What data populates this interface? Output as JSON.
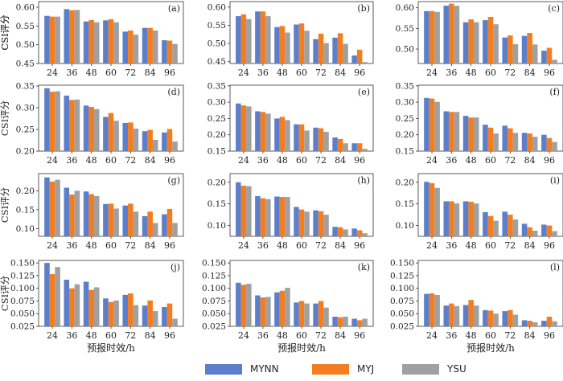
{
  "chart_data": [
    {
      "type": "bar",
      "panel_label": "(a)",
      "categories": [
        "24",
        "36",
        "48",
        "60",
        "72",
        "84",
        "96"
      ],
      "ylim": [
        0.45,
        0.615
      ],
      "yticks": [
        0.45,
        0.5,
        0.55,
        0.6
      ],
      "ytick_labels": [
        "0.45",
        "0.50",
        "0.55",
        "0.60"
      ],
      "ylabel": "CSI评分",
      "xlabel": "",
      "series": [
        {
          "name": "MYNN",
          "values": [
            0.577,
            0.595,
            0.562,
            0.565,
            0.535,
            0.545,
            0.512
          ]
        },
        {
          "name": "MYJ",
          "values": [
            0.575,
            0.592,
            0.566,
            0.568,
            0.538,
            0.545,
            0.511
          ]
        },
        {
          "name": "YSU",
          "values": [
            0.575,
            0.593,
            0.56,
            0.56,
            0.527,
            0.538,
            0.502
          ]
        }
      ]
    },
    {
      "type": "bar",
      "panel_label": "(b)",
      "categories": [
        "24",
        "36",
        "48",
        "60",
        "72",
        "84",
        "96"
      ],
      "ylim": [
        0.445,
        0.615
      ],
      "yticks": [
        0.45,
        0.5,
        0.55,
        0.6
      ],
      "ytick_labels": [
        "0.45",
        "0.50",
        "0.55",
        "0.60"
      ],
      "ylabel": "CSI评分",
      "xlabel": "",
      "series": [
        {
          "name": "MYNN",
          "values": [
            0.575,
            0.588,
            0.545,
            0.552,
            0.512,
            0.516,
            0.467
          ]
        },
        {
          "name": "MYJ",
          "values": [
            0.58,
            0.588,
            0.548,
            0.555,
            0.527,
            0.528,
            0.483
          ]
        },
        {
          "name": "YSU",
          "values": [
            0.567,
            0.575,
            0.53,
            0.535,
            0.501,
            0.499,
            0.449
          ]
        }
      ]
    },
    {
      "type": "bar",
      "panel_label": "(c)",
      "categories": [
        "24",
        "36",
        "48",
        "60",
        "72",
        "84",
        "96"
      ],
      "ylim": [
        0.465,
        0.615
      ],
      "yticks": [
        0.5,
        0.55,
        0.6
      ],
      "ytick_labels": [
        "0.50",
        "0.55",
        "0.60"
      ],
      "ylabel": "",
      "xlabel": "",
      "series": [
        {
          "name": "MYNN",
          "values": [
            0.592,
            0.605,
            0.565,
            0.57,
            0.528,
            0.532,
            0.496
          ]
        },
        {
          "name": "MYJ",
          "values": [
            0.592,
            0.61,
            0.572,
            0.578,
            0.533,
            0.539,
            0.503
          ]
        },
        {
          "name": "YSU",
          "values": [
            0.59,
            0.605,
            0.565,
            0.56,
            0.512,
            0.511,
            0.474
          ]
        }
      ]
    },
    {
      "type": "bar",
      "panel_label": "(d)",
      "categories": [
        "24",
        "36",
        "48",
        "60",
        "72",
        "84",
        "96"
      ],
      "ylim": [
        0.2,
        0.352
      ],
      "yticks": [
        0.2,
        0.25,
        0.3,
        0.35
      ],
      "ytick_labels": [
        "0.20",
        "0.25",
        "0.30",
        "0.35"
      ],
      "ylabel": "CSI评分",
      "xlabel": "",
      "series": [
        {
          "name": "MYNN",
          "values": [
            0.345,
            0.328,
            0.305,
            0.279,
            0.265,
            0.246,
            0.243
          ]
        },
        {
          "name": "MYJ",
          "values": [
            0.337,
            0.318,
            0.302,
            0.288,
            0.266,
            0.249,
            0.251
          ]
        },
        {
          "name": "YSU",
          "values": [
            0.338,
            0.319,
            0.297,
            0.27,
            0.252,
            0.226,
            0.222
          ]
        }
      ]
    },
    {
      "type": "bar",
      "panel_label": "(e)",
      "categories": [
        "24",
        "36",
        "48",
        "60",
        "72",
        "84",
        "96"
      ],
      "ylim": [
        0.15,
        0.352
      ],
      "yticks": [
        0.15,
        0.2,
        0.25,
        0.3,
        0.35
      ],
      "ytick_labels": [
        "0.15",
        "0.20",
        "0.25",
        "0.30",
        "0.35"
      ],
      "ylabel": "",
      "xlabel": "",
      "series": [
        {
          "name": "MYNN",
          "values": [
            0.296,
            0.272,
            0.25,
            0.232,
            0.222,
            0.192,
            0.174
          ]
        },
        {
          "name": "MYJ",
          "values": [
            0.29,
            0.27,
            0.255,
            0.232,
            0.22,
            0.187,
            0.174
          ]
        },
        {
          "name": "YSU",
          "values": [
            0.287,
            0.265,
            0.245,
            0.213,
            0.209,
            0.174,
            0.157
          ]
        }
      ]
    },
    {
      "type": "bar",
      "panel_label": "(f)",
      "categories": [
        "24",
        "36",
        "48",
        "60",
        "72",
        "84",
        "96"
      ],
      "ylim": [
        0.15,
        0.352
      ],
      "yticks": [
        0.15,
        0.2,
        0.25,
        0.3,
        0.35
      ],
      "ytick_labels": [
        "0.15",
        "0.20",
        "0.25",
        "0.30",
        "0.35"
      ],
      "ylabel": "",
      "xlabel": "",
      "series": [
        {
          "name": "MYNN",
          "values": [
            0.313,
            0.272,
            0.258,
            0.231,
            0.228,
            0.206,
            0.2
          ]
        },
        {
          "name": "MYJ",
          "values": [
            0.311,
            0.27,
            0.253,
            0.222,
            0.22,
            0.204,
            0.19
          ]
        },
        {
          "name": "YSU",
          "values": [
            0.301,
            0.27,
            0.253,
            0.204,
            0.206,
            0.194,
            0.178
          ]
        }
      ]
    },
    {
      "type": "bar",
      "panel_label": "(g)",
      "categories": [
        "24",
        "36",
        "48",
        "60",
        "72",
        "84",
        "96"
      ],
      "ylim": [
        0.08,
        0.245
      ],
      "yticks": [
        0.1,
        0.15,
        0.2
      ],
      "ytick_labels": [
        "0.10",
        "0.15",
        "0.20"
      ],
      "ylabel": "CSI评分",
      "xlabel": "",
      "series": [
        {
          "name": "MYNN",
          "values": [
            0.235,
            0.208,
            0.198,
            0.165,
            0.161,
            0.133,
            0.138
          ]
        },
        {
          "name": "MYJ",
          "values": [
            0.224,
            0.19,
            0.191,
            0.166,
            0.166,
            0.145,
            0.152
          ]
        },
        {
          "name": "YSU",
          "values": [
            0.229,
            0.2,
            0.186,
            0.153,
            0.145,
            0.115,
            0.115
          ]
        }
      ]
    },
    {
      "type": "bar",
      "panel_label": "(h)",
      "categories": [
        "24",
        "36",
        "48",
        "60",
        "72",
        "84",
        "96"
      ],
      "ylim": [
        0.075,
        0.22
      ],
      "yticks": [
        0.1,
        0.15,
        0.2
      ],
      "ytick_labels": [
        "0.10",
        "0.15",
        "0.20"
      ],
      "ylabel": "",
      "xlabel": "",
      "series": [
        {
          "name": "MYNN",
          "values": [
            0.2,
            0.168,
            0.167,
            0.143,
            0.135,
            0.097,
            0.093
          ]
        },
        {
          "name": "MYJ",
          "values": [
            0.192,
            0.163,
            0.166,
            0.137,
            0.133,
            0.096,
            0.089
          ]
        },
        {
          "name": "YSU",
          "values": [
            0.191,
            0.161,
            0.166,
            0.132,
            0.125,
            0.091,
            0.082
          ]
        }
      ]
    },
    {
      "type": "bar",
      "panel_label": "(i)",
      "categories": [
        "24",
        "36",
        "48",
        "60",
        "72",
        "84",
        "96"
      ],
      "ylim": [
        0.075,
        0.22
      ],
      "yticks": [
        0.1,
        0.15,
        0.2
      ],
      "ytick_labels": [
        "0.10",
        "0.15",
        "0.20"
      ],
      "ylabel": "",
      "xlabel": "",
      "series": [
        {
          "name": "MYNN",
          "values": [
            0.201,
            0.156,
            0.156,
            0.131,
            0.132,
            0.104,
            0.102
          ]
        },
        {
          "name": "MYJ",
          "values": [
            0.198,
            0.156,
            0.155,
            0.122,
            0.125,
            0.096,
            0.1
          ]
        },
        {
          "name": "YSU",
          "values": [
            0.187,
            0.151,
            0.151,
            0.111,
            0.114,
            0.088,
            0.087
          ]
        }
      ]
    },
    {
      "type": "bar",
      "panel_label": "(j)",
      "categories": [
        "24",
        "36",
        "48",
        "60",
        "72",
        "84",
        "96"
      ],
      "ylim": [
        0.025,
        0.155
      ],
      "yticks": [
        0.025,
        0.05,
        0.075,
        0.1,
        0.125,
        0.15
      ],
      "ytick_labels": [
        "0.025",
        "0.050",
        "0.075",
        "0.100",
        "0.125",
        "0.150"
      ],
      "ylabel": "CSI评分",
      "xlabel": "预报时效/h",
      "series": [
        {
          "name": "MYNN",
          "values": [
            0.15,
            0.117,
            0.113,
            0.08,
            0.087,
            0.066,
            0.063
          ]
        },
        {
          "name": "MYJ",
          "values": [
            0.128,
            0.1,
            0.097,
            0.073,
            0.09,
            0.076,
            0.07
          ]
        },
        {
          "name": "YSU",
          "values": [
            0.142,
            0.108,
            0.102,
            0.076,
            0.067,
            0.055,
            0.04
          ]
        }
      ]
    },
    {
      "type": "bar",
      "panel_label": "(k)",
      "categories": [
        "24",
        "36",
        "48",
        "60",
        "72",
        "84",
        "96"
      ],
      "ylim": [
        0.025,
        0.155
      ],
      "yticks": [
        0.025,
        0.05,
        0.075,
        0.1,
        0.125,
        0.15
      ],
      "ytick_labels": [
        "0.025",
        "0.050",
        "0.075",
        "0.100",
        "0.125",
        "0.150"
      ],
      "ylabel": "",
      "xlabel": "预报时效/h",
      "series": [
        {
          "name": "MYNN",
          "values": [
            0.111,
            0.086,
            0.092,
            0.072,
            0.07,
            0.044,
            0.04
          ]
        },
        {
          "name": "MYJ",
          "values": [
            0.107,
            0.082,
            0.095,
            0.075,
            0.075,
            0.043,
            0.037
          ]
        },
        {
          "name": "YSU",
          "values": [
            0.109,
            0.083,
            0.101,
            0.07,
            0.062,
            0.044,
            0.04
          ]
        }
      ]
    },
    {
      "type": "bar",
      "panel_label": "(l)",
      "categories": [
        "24",
        "36",
        "48",
        "60",
        "72",
        "84",
        "96"
      ],
      "ylim": [
        0.025,
        0.155
      ],
      "yticks": [
        0.025,
        0.05,
        0.075,
        0.1,
        0.125,
        0.15
      ],
      "ytick_labels": [
        "0.025",
        "0.050",
        "0.075",
        "0.100",
        "0.125",
        "0.150"
      ],
      "ylabel": "",
      "xlabel": "预报时效/h",
      "series": [
        {
          "name": "MYNN",
          "values": [
            0.089,
            0.066,
            0.067,
            0.057,
            0.055,
            0.037,
            0.036
          ]
        },
        {
          "name": "MYJ",
          "values": [
            0.09,
            0.07,
            0.077,
            0.056,
            0.057,
            0.036,
            0.044
          ]
        },
        {
          "name": "YSU",
          "values": [
            0.087,
            0.065,
            0.066,
            0.05,
            0.048,
            0.033,
            0.035
          ]
        }
      ]
    }
  ],
  "legend": {
    "items": [
      "MYNN",
      "MYJ",
      "YSU"
    ],
    "placement": "bottom-center"
  },
  "colors": {
    "MYNN": "#5b7fca",
    "MYJ": "#f47d20",
    "YSU": "#a0a0a0"
  }
}
